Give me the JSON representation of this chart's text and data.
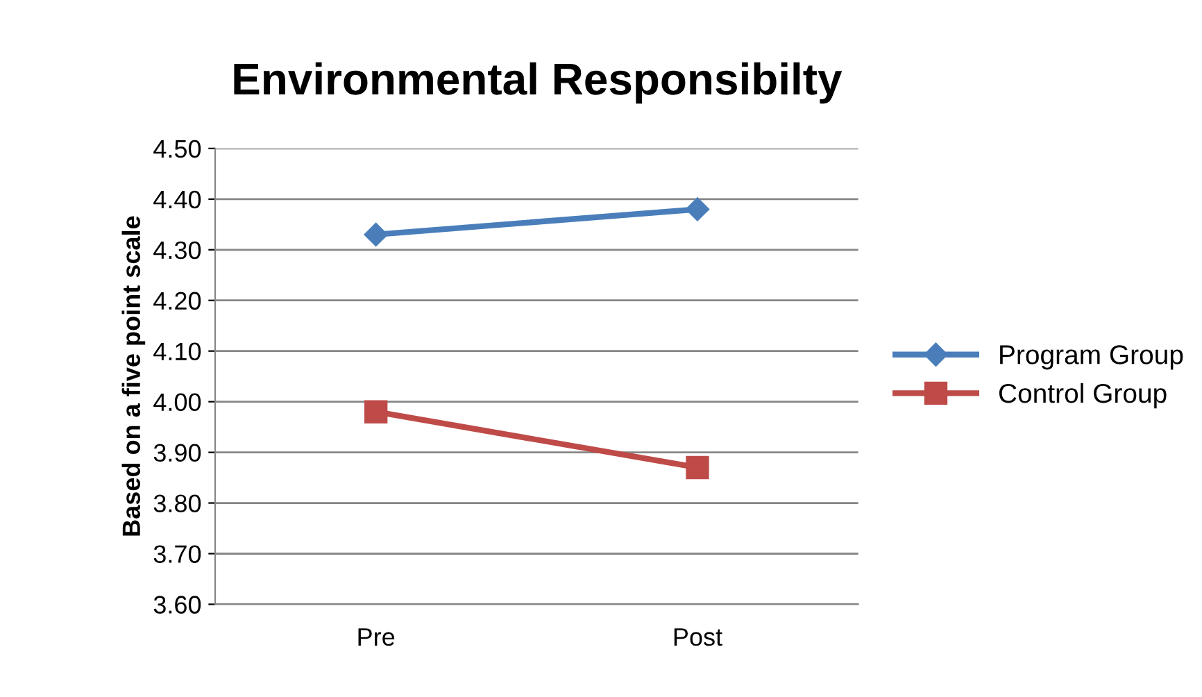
{
  "chart_data": {
    "type": "line",
    "title": "Environmental Responsibilty",
    "ylabel": "Based on a five point scale",
    "categories": [
      "Pre",
      "Post"
    ],
    "series": [
      {
        "name": "Program Group",
        "color": "#4a7ebb",
        "values": [
          4.33,
          4.38
        ],
        "marker": "diamond"
      },
      {
        "name": "Control Group",
        "color": "#be4b48",
        "values": [
          3.98,
          3.87
        ],
        "marker": "square"
      }
    ],
    "ylim": [
      3.6,
      4.5
    ],
    "yticks": [
      {
        "value": 3.6,
        "label": "3.60"
      },
      {
        "value": 3.7,
        "label": "3.70"
      },
      {
        "value": 3.8,
        "label": "3.80"
      },
      {
        "value": 3.9,
        "label": "3.90"
      },
      {
        "value": 4.0,
        "label": "4.00"
      },
      {
        "value": 4.1,
        "label": "4.10"
      },
      {
        "value": 4.2,
        "label": "4.20"
      },
      {
        "value": 4.3,
        "label": "4.30"
      },
      {
        "value": 4.4,
        "label": "4.40"
      },
      {
        "value": 4.5,
        "label": "4.50"
      }
    ],
    "grid": "y",
    "legend": "right",
    "line_style": "solid"
  }
}
